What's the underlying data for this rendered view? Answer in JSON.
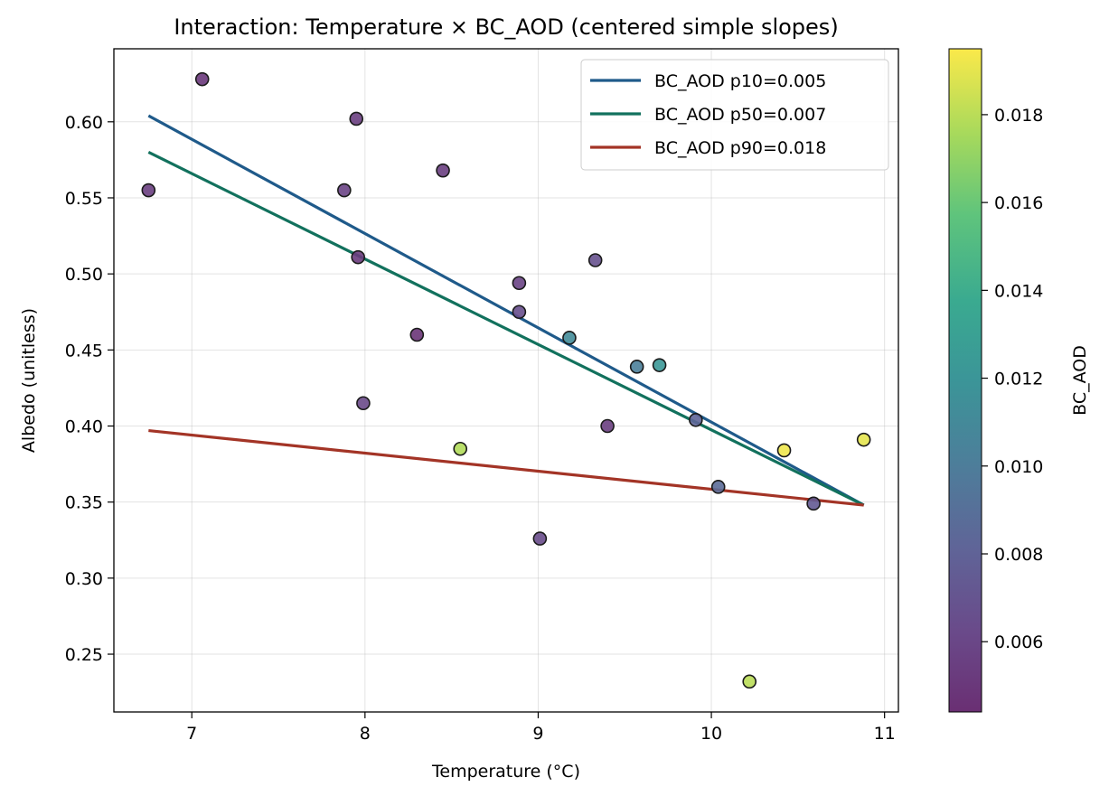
{
  "chart_data": {
    "type": "scatter",
    "title": "Interaction: Temperature × BC_AOD (centered simple slopes)",
    "xlabel": "Temperature (°C)",
    "ylabel": "Albedo (unitless)",
    "xlim": [
      6.55,
      11.08
    ],
    "ylim": [
      0.212,
      0.648
    ],
    "xticks": [
      7,
      8,
      9,
      10,
      11
    ],
    "xtick_labels": [
      "7",
      "8",
      "9",
      "10",
      "11"
    ],
    "yticks": [
      0.25,
      0.3,
      0.35,
      0.4,
      0.45,
      0.5,
      0.55,
      0.6
    ],
    "ytick_labels": [
      "0.25",
      "0.30",
      "0.35",
      "0.40",
      "0.45",
      "0.50",
      "0.55",
      "0.60"
    ],
    "grid": true,
    "legend_position": "top-right",
    "colorbar": {
      "label": "BC_AOD",
      "range": [
        0.0044,
        0.0195
      ],
      "ticks": [
        0.006,
        0.008,
        0.01,
        0.012,
        0.014,
        0.016,
        0.018
      ],
      "tick_labels": [
        "0.006",
        "0.008",
        "0.010",
        "0.012",
        "0.014",
        "0.016",
        "0.018"
      ],
      "colormap": "viridis"
    },
    "points": [
      {
        "x": 6.75,
        "y": 0.555,
        "c": 0.0055
      },
      {
        "x": 7.06,
        "y": 0.628,
        "c": 0.005
      },
      {
        "x": 7.88,
        "y": 0.555,
        "c": 0.0058
      },
      {
        "x": 7.95,
        "y": 0.602,
        "c": 0.0055
      },
      {
        "x": 7.96,
        "y": 0.511,
        "c": 0.0052
      },
      {
        "x": 7.99,
        "y": 0.415,
        "c": 0.0062
      },
      {
        "x": 8.3,
        "y": 0.46,
        "c": 0.0048
      },
      {
        "x": 8.45,
        "y": 0.568,
        "c": 0.0055
      },
      {
        "x": 8.55,
        "y": 0.385,
        "c": 0.0178
      },
      {
        "x": 8.89,
        "y": 0.494,
        "c": 0.0058
      },
      {
        "x": 8.89,
        "y": 0.475,
        "c": 0.0066
      },
      {
        "x": 9.01,
        "y": 0.326,
        "c": 0.0064
      },
      {
        "x": 9.18,
        "y": 0.458,
        "c": 0.0112
      },
      {
        "x": 9.33,
        "y": 0.509,
        "c": 0.0068
      },
      {
        "x": 9.4,
        "y": 0.4,
        "c": 0.0055
      },
      {
        "x": 9.57,
        "y": 0.439,
        "c": 0.0102
      },
      {
        "x": 9.7,
        "y": 0.44,
        "c": 0.0122
      },
      {
        "x": 9.91,
        "y": 0.404,
        "c": 0.0082
      },
      {
        "x": 10.04,
        "y": 0.36,
        "c": 0.0086
      },
      {
        "x": 10.22,
        "y": 0.232,
        "c": 0.018
      },
      {
        "x": 10.42,
        "y": 0.384,
        "c": 0.0192
      },
      {
        "x": 10.59,
        "y": 0.349,
        "c": 0.0074
      },
      {
        "x": 10.88,
        "y": 0.391,
        "c": 0.019
      }
    ],
    "series": [
      {
        "name": "BC_AOD p10=0.005",
        "color": "#1f5a8a",
        "x": [
          6.75,
          10.88
        ],
        "y": [
          0.604,
          0.348
        ]
      },
      {
        "name": "BC_AOD p50=0.007",
        "color": "#12715d",
        "x": [
          6.75,
          10.88
        ],
        "y": [
          0.58,
          0.348
        ]
      },
      {
        "name": "BC_AOD p90=0.018",
        "color": "#a33426",
        "x": [
          6.75,
          10.88
        ],
        "y": [
          0.397,
          0.348
        ]
      }
    ]
  }
}
